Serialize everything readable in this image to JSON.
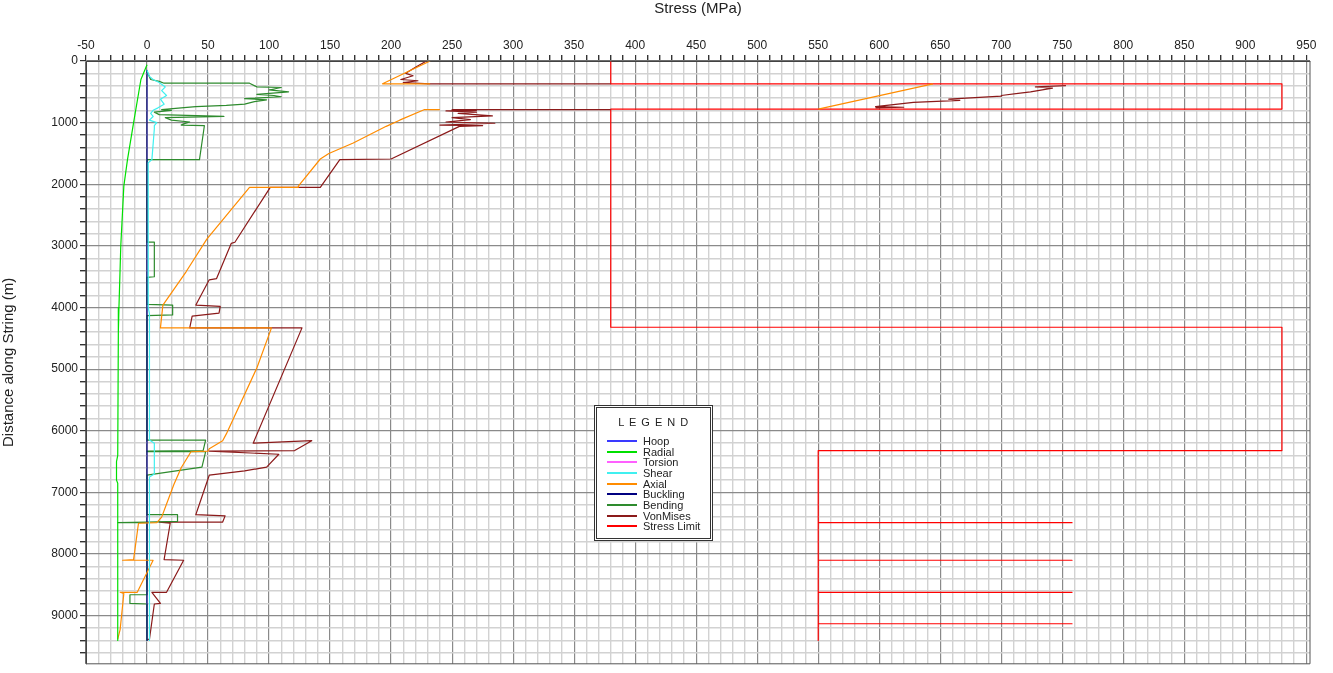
{
  "chart_data": {
    "type": "line",
    "xlabel": "Stress (MPa)",
    "ylabel": "Distance along String (m)",
    "legend_title": "L E G E N D",
    "legend": "bottom",
    "grid": true,
    "marker": "none",
    "line_style": "solid",
    "xlim": [
      -50,
      953
    ],
    "ylim": [
      9780,
      0
    ],
    "xticks": [
      -50,
      {
        "value": -40,
        "label": null
      },
      {
        "value": -30,
        "label": null
      },
      {
        "value": -20,
        "label": null
      },
      {
        "value": -10,
        "label": null
      },
      0,
      {
        "value": 10,
        "label": null
      },
      {
        "value": 20,
        "label": null
      },
      {
        "value": 30,
        "label": null
      },
      {
        "value": 40,
        "label": null
      },
      50,
      {
        "value": 60,
        "label": null
      },
      {
        "value": 70,
        "label": null
      },
      {
        "value": 80,
        "label": null
      },
      {
        "value": 90,
        "label": null
      },
      100,
      {
        "value": 110,
        "label": null
      },
      {
        "value": 120,
        "label": null
      },
      {
        "value": 130,
        "label": null
      },
      {
        "value": 140,
        "label": null
      },
      150,
      {
        "value": 160,
        "label": null
      },
      {
        "value": 170,
        "label": null
      },
      {
        "value": 180,
        "label": null
      },
      {
        "value": 190,
        "label": null
      },
      200,
      {
        "value": 210,
        "label": null
      },
      {
        "value": 220,
        "label": null
      },
      {
        "value": 230,
        "label": null
      },
      {
        "value": 240,
        "label": null
      },
      250,
      {
        "value": 260,
        "label": null
      },
      {
        "value": 270,
        "label": null
      },
      {
        "value": 280,
        "label": null
      },
      {
        "value": 290,
        "label": null
      },
      300,
      {
        "value": 310,
        "label": null
      },
      {
        "value": 320,
        "label": null
      },
      {
        "value": 330,
        "label": null
      },
      {
        "value": 340,
        "label": null
      },
      350,
      {
        "value": 360,
        "label": null
      },
      {
        "value": 370,
        "label": null
      },
      {
        "value": 380,
        "label": null
      },
      {
        "value": 390,
        "label": null
      },
      400,
      {
        "value": 410,
        "label": null
      },
      {
        "value": 420,
        "label": null
      },
      {
        "value": 430,
        "label": null
      },
      {
        "value": 440,
        "label": null
      },
      450,
      {
        "value": 460,
        "label": null
      },
      {
        "value": 470,
        "label": null
      },
      {
        "value": 480,
        "label": null
      },
      {
        "value": 490,
        "label": null
      },
      500,
      {
        "value": 510,
        "label": null
      },
      {
        "value": 520,
        "label": null
      },
      {
        "value": 530,
        "label": null
      },
      {
        "value": 540,
        "label": null
      },
      550,
      {
        "value": 560,
        "label": null
      },
      {
        "value": 570,
        "label": null
      },
      {
        "value": 580,
        "label": null
      },
      {
        "value": 590,
        "label": null
      },
      600,
      {
        "value": 610,
        "label": null
      },
      {
        "value": 620,
        "label": null
      },
      {
        "value": 630,
        "label": null
      },
      {
        "value": 640,
        "label": null
      },
      650,
      {
        "value": 660,
        "label": null
      },
      {
        "value": 670,
        "label": null
      },
      {
        "value": 680,
        "label": null
      },
      {
        "value": 690,
        "label": null
      },
      700,
      {
        "value": 710,
        "label": null
      },
      {
        "value": 720,
        "label": null
      },
      {
        "value": 730,
        "label": null
      },
      {
        "value": 740,
        "label": null
      },
      750,
      {
        "value": 760,
        "label": null
      },
      {
        "value": 770,
        "label": null
      },
      {
        "value": 780,
        "label": null
      },
      {
        "value": 790,
        "label": null
      },
      800,
      {
        "value": 810,
        "label": null
      },
      {
        "value": 820,
        "label": null
      },
      {
        "value": 830,
        "label": null
      },
      {
        "value": 840,
        "label": null
      },
      850,
      {
        "value": 860,
        "label": null
      },
      {
        "value": 870,
        "label": null
      },
      {
        "value": 880,
        "label": null
      },
      {
        "value": 890,
        "label": null
      },
      900,
      {
        "value": 910,
        "label": null
      },
      {
        "value": 920,
        "label": null
      },
      {
        "value": 930,
        "label": null
      },
      {
        "value": 940,
        "label": null
      },
      950
    ],
    "yticks": [
      0,
      {
        "value": 200,
        "label": null
      },
      {
        "value": 400,
        "label": null
      },
      {
        "value": 600,
        "label": null
      },
      {
        "value": 800,
        "label": null
      },
      1000,
      {
        "value": 1200,
        "label": null
      },
      {
        "value": 1400,
        "label": null
      },
      {
        "value": 1600,
        "label": null
      },
      {
        "value": 1800,
        "label": null
      },
      2000,
      {
        "value": 2200,
        "label": null
      },
      {
        "value": 2400,
        "label": null
      },
      {
        "value": 2600,
        "label": null
      },
      {
        "value": 2800,
        "label": null
      },
      3000,
      {
        "value": 3200,
        "label": null
      },
      {
        "value": 3400,
        "label": null
      },
      {
        "value": 3600,
        "label": null
      },
      {
        "value": 3800,
        "label": null
      },
      4000,
      {
        "value": 4200,
        "label": null
      },
      {
        "value": 4400,
        "label": null
      },
      {
        "value": 4600,
        "label": null
      },
      {
        "value": 4800,
        "label": null
      },
      5000,
      {
        "value": 5200,
        "label": null
      },
      {
        "value": 5400,
        "label": null
      },
      {
        "value": 5600,
        "label": null
      },
      {
        "value": 5800,
        "label": null
      },
      6000,
      {
        "value": 6200,
        "label": null
      },
      {
        "value": 6400,
        "label": null
      },
      {
        "value": 6600,
        "label": null
      },
      {
        "value": 6800,
        "label": null
      },
      7000,
      {
        "value": 7200,
        "label": null
      },
      {
        "value": 7400,
        "label": null
      },
      {
        "value": 7600,
        "label": null
      },
      {
        "value": 7800,
        "label": null
      },
      8000,
      {
        "value": 8200,
        "label": null
      },
      {
        "value": 8400,
        "label": null
      },
      {
        "value": 8600,
        "label": null
      },
      {
        "value": 8800,
        "label": null
      },
      9000,
      {
        "value": 9200,
        "label": null
      },
      {
        "value": 9400,
        "label": null
      },
      {
        "value": 9600,
        "label": null
      }
    ],
    "series": [
      {
        "name": "Hoop",
        "color": "#3a3aff",
        "x": [
          null,
          null
        ],
        "values": [
          null,
          null
        ]
      },
      {
        "name": "Radial",
        "color": "#00e000",
        "x": [
          0,
          -5,
          -11,
          -16,
          -19,
          -21.5,
          -23,
          -23.5,
          -24,
          -25,
          -25,
          -24,
          -24
        ],
        "values": [
          60,
          300,
          1000,
          1600,
          2030,
          3000,
          4000,
          4400,
          6400,
          6500,
          6800,
          6850,
          9400
        ]
      },
      {
        "name": "Torsion",
        "color": "#ff60ff",
        "x": [
          null,
          null
        ],
        "values": [
          null,
          null
        ]
      },
      {
        "name": "Shear",
        "color": "#40f0f0",
        "x": [
          0,
          2,
          5,
          10,
          15,
          12,
          16,
          11,
          14,
          9,
          5,
          3,
          5,
          2,
          8,
          6,
          6,
          4,
          1,
          1,
          2,
          2,
          6,
          6,
          2,
          2
        ],
        "values": [
          150,
          250,
          300,
          350,
          420,
          480,
          560,
          620,
          700,
          760,
          800,
          850,
          900,
          960,
          1000,
          1050,
          1100,
          1600,
          1650,
          4000,
          4100,
          6150,
          6200,
          6700,
          6750,
          9400
        ]
      },
      {
        "name": "Axial",
        "color": "#ff8c00",
        "x": [
          232,
          193,
          232,
          null,
          644,
          550,
          null,
          240,
          227,
          207,
          196,
          169,
          149,
          142,
          124,
          124,
          84,
          49,
          32,
          13,
          11,
          102,
          90,
          65,
          62,
          51,
          50,
          36,
          28,
          22,
          12,
          8,
          -7,
          -11,
          -20,
          5,
          -8,
          -22,
          -19,
          -22,
          -24
        ],
        "values": [
          0,
          370,
          370,
          null,
          370,
          780,
          null,
          790,
          790,
          960,
          1060,
          1330,
          1500,
          1590,
          2030,
          2050,
          2050,
          2890,
          3420,
          3960,
          4330,
          4330,
          4980,
          6050,
          6160,
          6290,
          6330,
          6340,
          6600,
          6870,
          7400,
          7490,
          7500,
          8090,
          8100,
          8100,
          8620,
          8620,
          8640,
          9220,
          9380
        ]
      },
      {
        "name": "Buckling",
        "color": "#000080",
        "x": [
          0,
          0
        ],
        "values": [
          150,
          9400
        ]
      },
      {
        "name": "Bending",
        "color": "#2e8b2e",
        "x": [
          0,
          3,
          10,
          14,
          84,
          90,
          110,
          100,
          116,
          90,
          104,
          110,
          80,
          98,
          88,
          80,
          65,
          40,
          28,
          12,
          20,
          6,
          10,
          63,
          15,
          20,
          35,
          30,
          28,
          47,
          43,
          0,
          0,
          6,
          6,
          0,
          0,
          21,
          21,
          0,
          0,
          48,
          46,
          0,
          0,
          48,
          45,
          0,
          0,
          25,
          25,
          0,
          -24,
          0,
          0,
          -14,
          -14,
          0,
          0
        ],
        "values": [
          170,
          300,
          330,
          360,
          360,
          420,
          430,
          470,
          500,
          540,
          560,
          580,
          610,
          630,
          660,
          700,
          720,
          740,
          760,
          790,
          800,
          830,
          870,
          900,
          920,
          960,
          990,
          1020,
          1040,
          1050,
          1600,
          1600,
          2940,
          2940,
          3500,
          3510,
          3950,
          3960,
          4120,
          4130,
          6150,
          6150,
          6320,
          6330,
          6340,
          6340,
          6590,
          6720,
          7360,
          7360,
          7470,
          7480,
          7490,
          7490,
          8660,
          8660,
          8800,
          8810,
          9400
        ]
      },
      {
        "name": "VonMises",
        "color": "#8b1a1a",
        "x": [
          229,
          220,
          212,
          218,
          208,
          222,
          210,
          232,
          380,
          null,
          753,
          728,
          742,
          724,
          700,
          700,
          657,
          666,
          628,
          597,
          620,
          597,
          null,
          380,
          250,
          270,
          245,
          270,
          255,
          283,
          250,
          265,
          245,
          285,
          240,
          275,
          256,
          200,
          158,
          142,
          101,
          72,
          69,
          57,
          51,
          40,
          60,
          59,
          37,
          35,
          127,
          87,
          135,
          121,
          51,
          108,
          98,
          80,
          51,
          40,
          64,
          62,
          10,
          19,
          14,
          30,
          16,
          4,
          11,
          6,
          2,
          0
        ],
        "values": [
          0,
          100,
          200,
          240,
          300,
          320,
          350,
          370,
          370,
          null,
          400,
          420,
          440,
          500,
          560,
          570,
          620,
          640,
          670,
          740,
          750,
          760,
          null,
          790,
          790,
          800,
          810,
          830,
          850,
          890,
          920,
          950,
          990,
          1010,
          1040,
          1050,
          1060,
          1590,
          1600,
          2050,
          2050,
          2940,
          2960,
          3530,
          3550,
          3960,
          3980,
          4090,
          4140,
          4330,
          4330,
          6200,
          6160,
          6320,
          6330,
          6380,
          6590,
          6650,
          6720,
          7360,
          7380,
          7480,
          7480,
          7500,
          8090,
          8100,
          8620,
          8620,
          8800,
          8810,
          9380,
          9390
        ]
      },
      {
        "name": "Stress Limit",
        "color": "#ff0000",
        "x": [
          380,
          380,
          930,
          930,
          380,
          380,
          930,
          930,
          550,
          550,
          758,
          550,
          550,
          758,
          550,
          550,
          758,
          550,
          550,
          758,
          550,
          550
        ],
        "values": [
          0,
          370,
          370,
          780,
          780,
          4320,
          4320,
          6320,
          6320,
          7490,
          7490,
          7490,
          8100,
          8100,
          8100,
          8620,
          8620,
          8620,
          9130,
          9130,
          9130,
          9400
        ]
      }
    ]
  }
}
